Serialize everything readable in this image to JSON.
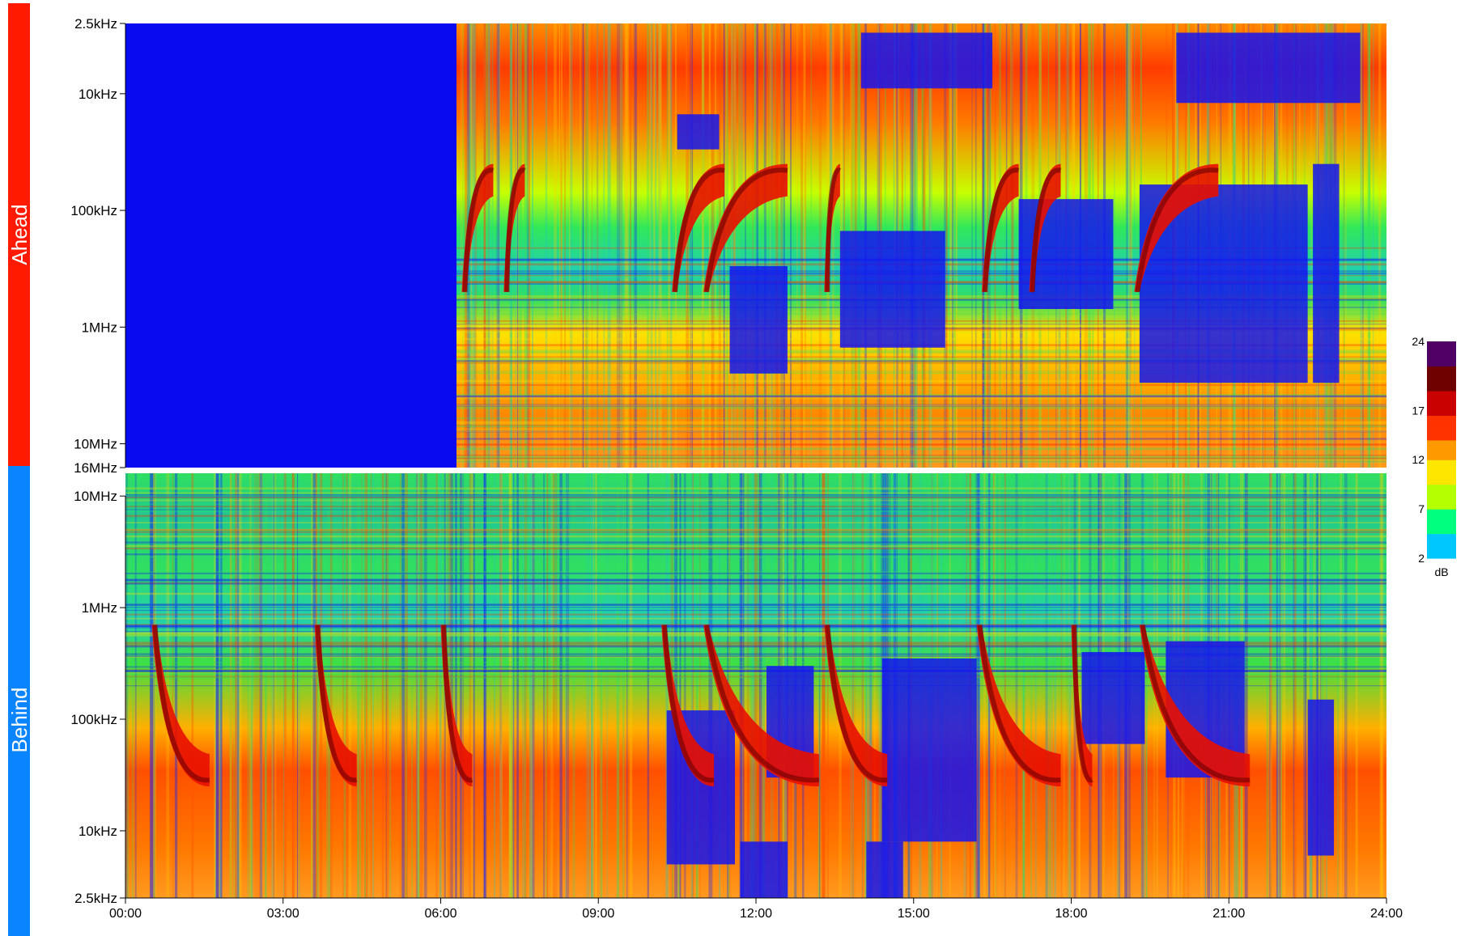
{
  "chart_data": {
    "type": "heatmap",
    "title": "",
    "xlabel": "",
    "x_ticks": [
      "00:00",
      "03:00",
      "06:00",
      "09:00",
      "12:00",
      "15:00",
      "18:00",
      "21:00",
      "24:00"
    ],
    "xlim_hours": [
      0,
      24
    ],
    "frequency_scale": "log",
    "panels": [
      {
        "name": "Ahead",
        "color": "#ff1a00",
        "orientation": "frequency increases downward",
        "freq_range_hz": [
          2500,
          16000000
        ],
        "y_ticks": [
          {
            "label": "2.5kHz",
            "hz": 2500
          },
          {
            "label": "10kHz",
            "hz": 10000
          },
          {
            "label": "100kHz",
            "hz": 100000
          },
          {
            "label": "1MHz",
            "hz": 1000000
          },
          {
            "label": "10MHz",
            "hz": 10000000
          },
          {
            "label": "16MHz",
            "hz": 16000000
          }
        ],
        "no_data_until_hour": 6.3
      },
      {
        "name": "Behind",
        "color": "#0a84ff",
        "orientation": "frequency increases upward",
        "freq_range_hz": [
          2500,
          16000000
        ],
        "y_ticks": [
          {
            "label": "10MHz",
            "hz": 10000000
          },
          {
            "label": "1MHz",
            "hz": 1000000
          },
          {
            "label": "100kHz",
            "hz": 100000
          },
          {
            "label": "10kHz",
            "hz": 10000
          },
          {
            "label": "2.5kHz",
            "hz": 2500
          }
        ]
      }
    ],
    "colorbar": {
      "unit": "dB",
      "range": [
        2,
        24
      ],
      "ticks": [
        "24",
        "17",
        "12",
        "7",
        "2"
      ],
      "tick_values": [
        24,
        17,
        12,
        7,
        2
      ],
      "colors": [
        "#00c8ff",
        "#00ff7f",
        "#b4ff00",
        "#ffe600",
        "#ff9900",
        "#ff3300",
        "#c80000",
        "#6e0000",
        "#500064"
      ]
    },
    "no_data_color": "#0a0af0",
    "grid": false,
    "legend": "none"
  }
}
